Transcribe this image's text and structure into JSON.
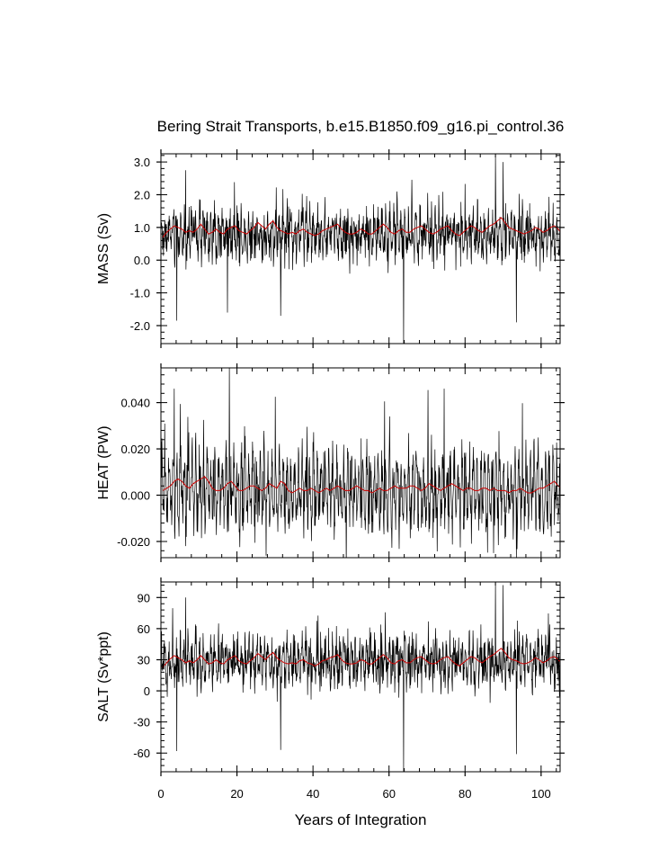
{
  "figure": {
    "title": "Bering Strait Transports, b.e15.B1850.f09_g16.pi_control.36",
    "xlabel": "Years of Integration"
  },
  "chart_data": [
    {
      "type": "line",
      "ylabel": "MASS (Sv)",
      "xlim": [
        0,
        105
      ],
      "ylim": [
        -2.55,
        3.25
      ],
      "x_ticks": [
        0,
        20,
        40,
        60,
        80,
        100
      ],
      "y_ticks": [
        -2.0,
        -1.0,
        0.0,
        1.0,
        2.0,
        3.0
      ],
      "y_tick_labels": [
        "-2.0",
        "-1.0",
        "0.0",
        "1.0",
        "2.0",
        "3.0"
      ],
      "series": [
        {
          "color": "#000000",
          "kind": "monthly",
          "mean": 0.8,
          "amplitude": 0.4,
          "noise": 0.35,
          "spikes": [
            [
              4.2,
              -1.85
            ],
            [
              6.5,
              2.75
            ],
            [
              17.5,
              -1.6
            ],
            [
              31.5,
              -1.7
            ],
            [
              63.8,
              -2.55
            ],
            [
              88,
              3.2
            ],
            [
              90,
              3.0
            ],
            [
              93.5,
              -1.9
            ]
          ]
        },
        {
          "color": "#cc0000",
          "kind": "annual_mean",
          "values": [
            0.7,
            0.85,
            0.95,
            1.05,
            1.0,
            0.95,
            0.85,
            0.9,
            0.85,
            0.95,
            1.1,
            0.95,
            0.8,
            0.85,
            0.95,
            0.85,
            0.8,
            0.95,
            1.0,
            1.05,
            0.9,
            0.85,
            0.8,
            0.9,
            1.0,
            1.15,
            1.05,
            0.95,
            1.1,
            1.2,
            1.0,
            0.9,
            0.85,
            0.8,
            0.85,
            0.8,
            0.9,
            0.95,
            0.85,
            0.8,
            0.75,
            0.8,
            0.9,
            0.95,
            1.0,
            1.05,
            1.1,
            0.95,
            0.85,
            0.8,
            0.8,
            0.85,
            0.95,
            0.9,
            0.8,
            0.8,
            0.9,
            1.0,
            1.1,
            1.0,
            0.85,
            0.8,
            0.9,
            0.95,
            0.85,
            0.85,
            0.95,
            1.0,
            1.05,
            0.95,
            0.85,
            0.8,
            0.85,
            0.95,
            1.0,
            1.05,
            0.9,
            0.8,
            0.75,
            0.85,
            0.95,
            1.05,
            1.0,
            0.9,
            0.85,
            0.95,
            1.05,
            1.1,
            1.2,
            1.3,
            1.15,
            1.0,
            0.95,
            0.9,
            0.85,
            0.8,
            0.85,
            0.9,
            1.0,
            0.95,
            0.85,
            0.9,
            1.0,
            1.05,
            0.95,
            0.8
          ]
        }
      ]
    },
    {
      "type": "line",
      "ylabel": "HEAT (PW)",
      "xlim": [
        0,
        105
      ],
      "ylim": [
        -0.027,
        0.055
      ],
      "x_ticks": [
        0,
        20,
        40,
        60,
        80,
        100
      ],
      "y_ticks": [
        -0.02,
        0.0,
        0.02,
        0.04
      ],
      "y_tick_labels": [
        "-0.020",
        "0.000",
        "0.020",
        "0.040"
      ],
      "series": [
        {
          "color": "#000000",
          "kind": "monthly_seasonal",
          "mean": 0.002,
          "amplitude": 0.012,
          "noise": 0.006,
          "spikes": [
            [
              3.5,
              0.046
            ],
            [
              6.5,
              -0.022
            ],
            [
              18,
              0.055
            ],
            [
              74.5,
              0.046
            ],
            [
              87.5,
              -0.025
            ],
            [
              93.5,
              -0.027
            ]
          ]
        },
        {
          "color": "#cc0000",
          "kind": "annual_mean",
          "values": [
            0.002,
            0.003,
            0.004,
            0.006,
            0.007,
            0.006,
            0.004,
            0.003,
            0.005,
            0.006,
            0.007,
            0.008,
            0.006,
            0.003,
            0.002,
            0.002,
            0.003,
            0.005,
            0.006,
            0.004,
            0.002,
            0.002,
            0.003,
            0.004,
            0.004,
            0.003,
            0.002,
            0.003,
            0.005,
            0.004,
            0.003,
            0.006,
            0.005,
            0.002,
            0.001,
            0.002,
            0.003,
            0.002,
            0.002,
            0.003,
            0.002,
            0.001,
            0.002,
            0.003,
            0.002,
            0.003,
            0.004,
            0.003,
            0.002,
            0.002,
            0.003,
            0.004,
            0.003,
            0.002,
            0.002,
            0.001,
            0.002,
            0.003,
            0.002,
            0.002,
            0.003,
            0.004,
            0.003,
            0.003,
            0.003,
            0.004,
            0.004,
            0.003,
            0.002,
            0.003,
            0.005,
            0.004,
            0.003,
            0.002,
            0.003,
            0.004,
            0.005,
            0.004,
            0.003,
            0.002,
            0.003,
            0.003,
            0.002,
            0.002,
            0.003,
            0.003,
            0.002,
            0.003,
            0.002,
            0.002,
            0.002,
            0.001,
            0.002,
            0.002,
            0.003,
            0.002,
            0.001,
            0.001,
            0.002,
            0.003,
            0.003,
            0.004,
            0.005,
            0.006,
            0.004,
            0.003
          ]
        }
      ]
    },
    {
      "type": "line",
      "ylabel": "SALT (Sv*ppt)",
      "xlim": [
        0,
        105
      ],
      "ylim": [
        -78,
        105
      ],
      "x_ticks": [
        0,
        20,
        40,
        60,
        80,
        100
      ],
      "y_ticks": [
        -60,
        -30,
        0,
        30,
        60,
        90
      ],
      "y_tick_labels": [
        "-60",
        "-30",
        "0",
        "30",
        "60",
        "90"
      ],
      "series": [
        {
          "color": "#000000",
          "kind": "monthly",
          "mean": 28,
          "amplitude": 12,
          "noise": 11,
          "spikes": [
            [
              4.2,
              -58
            ],
            [
              6.5,
              90
            ],
            [
              31.5,
              -57
            ],
            [
              63.8,
              -78
            ],
            [
              88,
              104
            ],
            [
              90,
              102
            ],
            [
              93.5,
              -61
            ]
          ]
        },
        {
          "color": "#cc0000",
          "kind": "annual_mean",
          "values": [
            23,
            27,
            31,
            34,
            32,
            30,
            27,
            29,
            27,
            30,
            34,
            30,
            26,
            27,
            30,
            27,
            26,
            30,
            32,
            34,
            29,
            27,
            26,
            29,
            32,
            36,
            33,
            30,
            34,
            37,
            32,
            29,
            27,
            26,
            27,
            26,
            29,
            30,
            27,
            26,
            24,
            26,
            29,
            30,
            32,
            33,
            35,
            30,
            27,
            26,
            26,
            27,
            30,
            29,
            26,
            26,
            29,
            32,
            35,
            32,
            27,
            26,
            29,
            30,
            27,
            27,
            30,
            32,
            33,
            30,
            27,
            26,
            27,
            30,
            32,
            33,
            29,
            26,
            24,
            27,
            30,
            33,
            32,
            29,
            27,
            30,
            33,
            35,
            38,
            41,
            37,
            32,
            30,
            29,
            27,
            26,
            27,
            29,
            32,
            30,
            27,
            29,
            32,
            33,
            30,
            26
          ]
        }
      ]
    }
  ]
}
